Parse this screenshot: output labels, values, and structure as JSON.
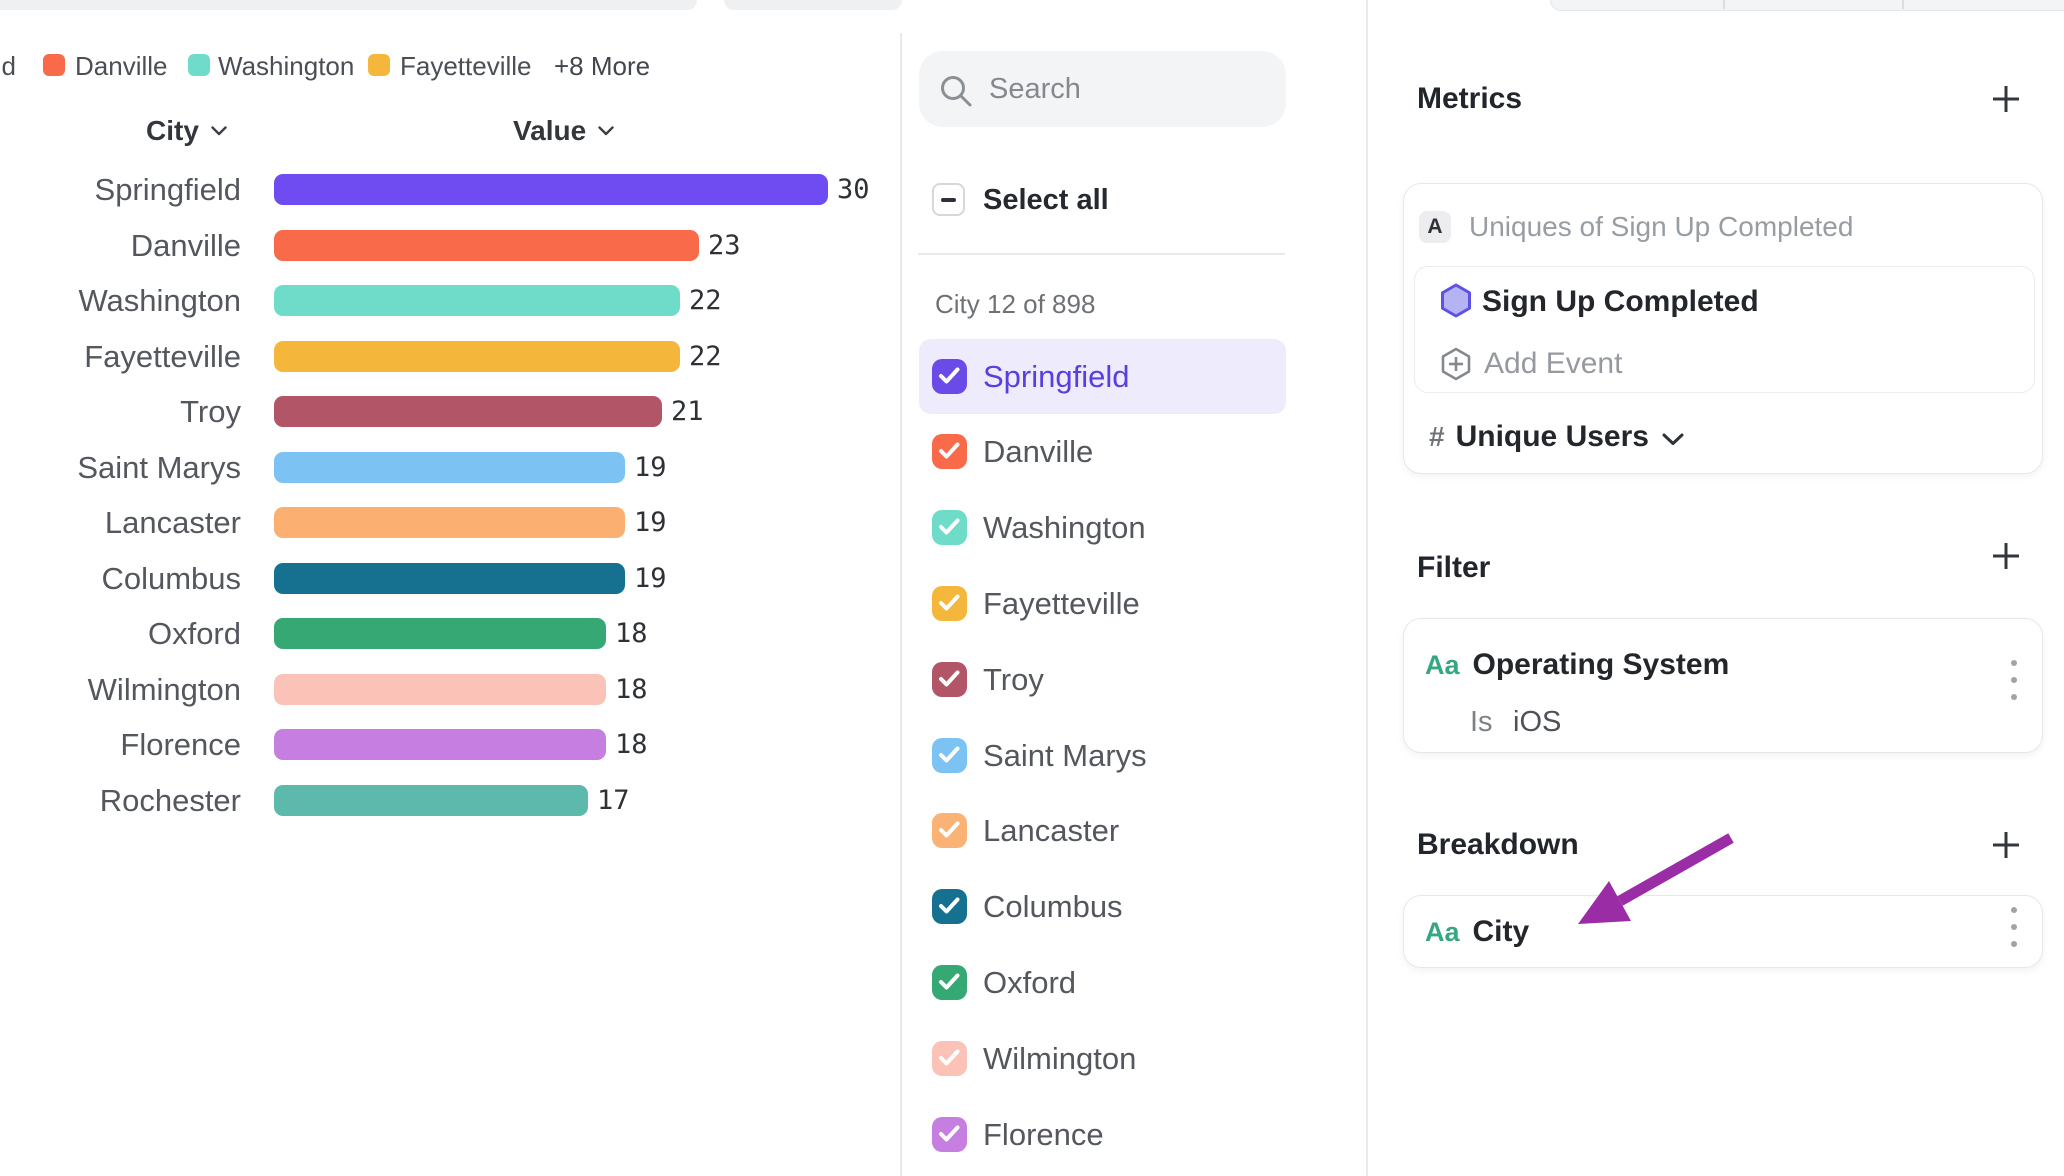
{
  "chart_data": {
    "type": "bar",
    "categories": [
      "Springfield",
      "Danville",
      "Washington",
      "Fayetteville",
      "Troy",
      "Saint Marys",
      "Lancaster",
      "Columbus",
      "Oxford",
      "Wilmington",
      "Florence",
      "Rochester"
    ],
    "values": [
      30,
      23,
      22,
      22,
      21,
      19,
      19,
      19,
      18,
      18,
      18,
      17
    ],
    "colors": [
      "#6e4cf1",
      "#f96a4b",
      "#6fdcca",
      "#f4b73c",
      "#b25667",
      "#7cc2f2",
      "#fbb072",
      "#15718f",
      "#36a873",
      "#fbc2b8",
      "#c67ee0",
      "#5cb9ab"
    ],
    "title": "",
    "xlabel": "Value",
    "ylabel": "City",
    "columns": {
      "category": "City",
      "value": "Value"
    },
    "legend": {
      "clipped_item": "Springfield",
      "items": [
        {
          "label": "Danville",
          "color": "#f96a4b"
        },
        {
          "label": "Washington",
          "color": "#6fdcca"
        },
        {
          "label": "Fayetteville",
          "color": "#f4b73c"
        }
      ],
      "more_label": "+8 More"
    }
  },
  "selector": {
    "search_placeholder": "Search",
    "select_all_label": "Select all",
    "count_label": "City 12 of 898",
    "items": [
      {
        "label": "Springfield",
        "color": "#6a4be8",
        "label_color": "#5840e0",
        "highlighted": true
      },
      {
        "label": "Danville",
        "color": "#f96a4b"
      },
      {
        "label": "Washington",
        "color": "#6fdcca"
      },
      {
        "label": "Fayetteville",
        "color": "#f4b73c"
      },
      {
        "label": "Troy",
        "color": "#b25667"
      },
      {
        "label": "Saint Marys",
        "color": "#7cc2f2"
      },
      {
        "label": "Lancaster",
        "color": "#fbb375"
      },
      {
        "label": "Columbus",
        "color": "#15718f"
      },
      {
        "label": "Oxford",
        "color": "#36a873"
      },
      {
        "label": "Wilmington",
        "color": "#fbc2b8"
      },
      {
        "label": "Florence",
        "color": "#c67ee0"
      }
    ]
  },
  "inspector": {
    "metrics": {
      "title": "Metrics",
      "badge": "A",
      "summary": "Uniques of Sign Up Completed",
      "event_name": "Sign Up Completed",
      "add_event_label": "Add Event",
      "hash": "#",
      "measure_label": "Unique Users"
    },
    "filter": {
      "title": "Filter",
      "type_badge": "Aa",
      "property": "Operating System",
      "operator": "Is",
      "value": "iOS"
    },
    "breakdown": {
      "title": "Breakdown",
      "type_badge": "Aa",
      "property": "City"
    },
    "arrow_color": "#9a2da5"
  }
}
